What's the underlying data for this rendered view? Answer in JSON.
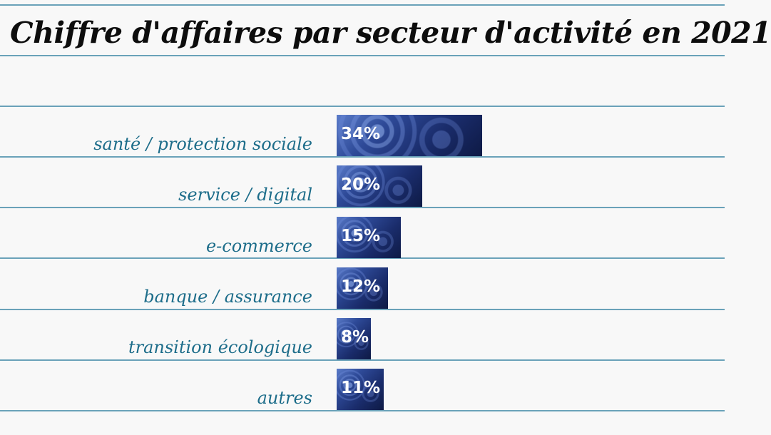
{
  "chart_data": {
    "type": "bar",
    "orientation": "horizontal",
    "title": "Chiffre d'affaires par secteur d'activité en 2021",
    "categories": [
      "santé / protection sociale",
      "service / digital",
      "e-commerce",
      "banque / assurance",
      "transition écologique",
      "autres"
    ],
    "values": [
      34,
      20,
      15,
      12,
      8,
      11
    ],
    "data_labels": [
      "34%",
      "20%",
      "15%",
      "12%",
      "8%",
      "11%"
    ],
    "unit": "%",
    "grid": false,
    "legend": "none"
  },
  "colors": {
    "background": "#f8f8f8",
    "rule": "#6aa2b9",
    "label": "#1d6d8a",
    "title": "#0d0d0d",
    "bar": "#2e4a98",
    "bar_text": "#ffffff"
  }
}
